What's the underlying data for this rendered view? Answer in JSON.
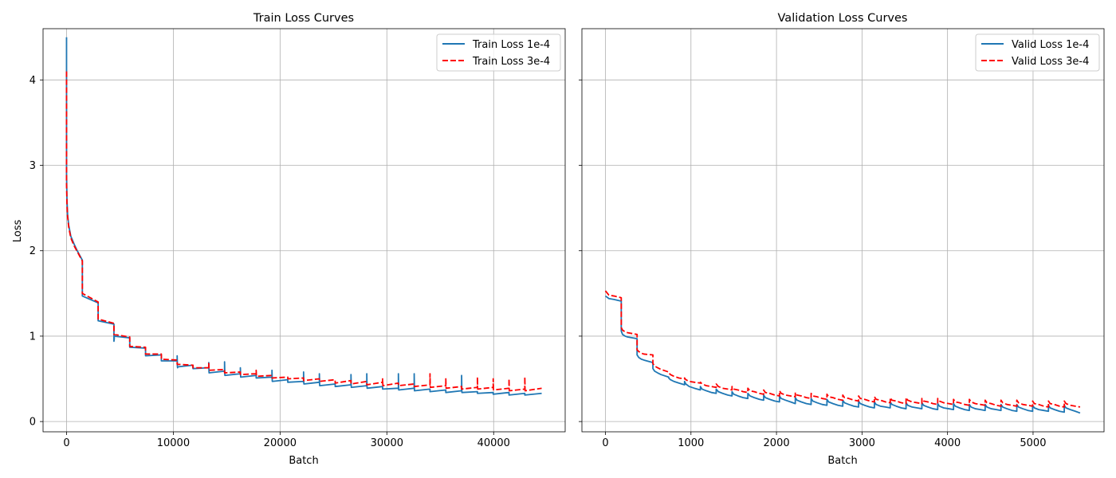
{
  "chart_data": [
    {
      "type": "line",
      "title": "Train Loss Curves",
      "xlabel": "Batch",
      "ylabel": "Loss",
      "xlim": [
        -2200,
        46700
      ],
      "ylim": [
        -0.12,
        4.6
      ],
      "xticks": [
        0,
        10000,
        20000,
        30000,
        40000
      ],
      "yticks": [
        0,
        1,
        2,
        3,
        4
      ],
      "grid": true,
      "legend_position": "upper right",
      "series": [
        {
          "name": "Train Loss 1e-4",
          "color": "#1f77b4",
          "dash": "solid",
          "x": [
            0,
            0,
            40,
            100,
            200,
            400,
            700,
            1000,
            1480,
            1480,
            2960,
            2960,
            4440,
            4440,
            4470,
            4470,
            5920,
            5920,
            7400,
            7400,
            8880,
            8880,
            10360,
            10360,
            10380,
            10400,
            10410,
            11840,
            11840,
            13320,
            13320,
            13340,
            13350,
            14800,
            14800,
            14820,
            14830,
            16280,
            16280,
            16300,
            16310,
            17760,
            17760,
            19240,
            19240,
            19260,
            19270,
            20720,
            20720,
            22200,
            22200,
            22220,
            22230,
            23680,
            23680,
            23700,
            23710,
            25160,
            25160,
            26640,
            26640,
            26660,
            26670,
            28120,
            28120,
            28140,
            28150,
            29600,
            29600,
            31080,
            31080,
            31100,
            31110,
            32560,
            32560,
            32580,
            32590,
            34040,
            34040,
            35520,
            35520,
            37000,
            37000,
            37020,
            37030,
            38480,
            38480,
            39960,
            39960,
            41440,
            41440,
            42920,
            42920,
            44500
          ],
          "y": [
            4.5,
            2.9,
            2.6,
            2.42,
            2.3,
            2.17,
            2.08,
            2.0,
            1.89,
            1.47,
            1.39,
            1.18,
            1.14,
            0.94,
            0.97,
            1.0,
            0.98,
            0.87,
            0.86,
            0.77,
            0.78,
            0.71,
            0.71,
            0.77,
            0.65,
            0.63,
            0.64,
            0.66,
            0.62,
            0.63,
            0.69,
            0.6,
            0.57,
            0.59,
            0.7,
            0.57,
            0.54,
            0.56,
            0.63,
            0.55,
            0.52,
            0.54,
            0.51,
            0.52,
            0.6,
            0.5,
            0.47,
            0.49,
            0.46,
            0.47,
            0.58,
            0.47,
            0.44,
            0.46,
            0.56,
            0.45,
            0.42,
            0.44,
            0.41,
            0.43,
            0.55,
            0.43,
            0.4,
            0.42,
            0.56,
            0.42,
            0.39,
            0.41,
            0.38,
            0.39,
            0.56,
            0.4,
            0.37,
            0.39,
            0.56,
            0.39,
            0.36,
            0.38,
            0.35,
            0.37,
            0.34,
            0.36,
            0.54,
            0.37,
            0.34,
            0.35,
            0.33,
            0.34,
            0.32,
            0.34,
            0.31,
            0.33,
            0.31,
            0.33
          ]
        },
        {
          "name": "Train Loss 3e-4",
          "color": "#ff0000",
          "dash": "dashed",
          "x": [
            0,
            0,
            40,
            100,
            200,
            400,
            700,
            1000,
            1480,
            1480,
            2960,
            2960,
            4440,
            4440,
            5920,
            5920,
            7400,
            7400,
            8880,
            8880,
            10360,
            10360,
            11840,
            11840,
            13320,
            13320,
            13340,
            13350,
            14800,
            14800,
            16280,
            16280,
            17760,
            17760,
            17780,
            17790,
            19240,
            19240,
            20720,
            20720,
            22200,
            22200,
            23680,
            23680,
            25160,
            25160,
            26640,
            26640,
            28120,
            28120,
            29600,
            29600,
            29620,
            29630,
            31080,
            31080,
            32560,
            32560,
            34040,
            34040,
            34060,
            34070,
            35520,
            35520,
            35540,
            35550,
            37000,
            37000,
            38480,
            38480,
            38500,
            38510,
            39960,
            39960,
            39980,
            39990,
            41440,
            41440,
            41460,
            41470,
            42920,
            42920,
            42940,
            42950,
            44500
          ],
          "y": [
            4.1,
            2.8,
            2.55,
            2.4,
            2.28,
            2.15,
            2.06,
            1.99,
            1.88,
            1.5,
            1.4,
            1.2,
            1.15,
            1.02,
            0.99,
            0.88,
            0.87,
            0.79,
            0.79,
            0.73,
            0.72,
            0.67,
            0.66,
            0.63,
            0.63,
            0.68,
            0.62,
            0.6,
            0.61,
            0.57,
            0.58,
            0.55,
            0.56,
            0.6,
            0.54,
            0.53,
            0.54,
            0.51,
            0.52,
            0.5,
            0.51,
            0.48,
            0.5,
            0.47,
            0.49,
            0.45,
            0.48,
            0.44,
            0.47,
            0.43,
            0.46,
            0.5,
            0.44,
            0.42,
            0.45,
            0.42,
            0.44,
            0.41,
            0.43,
            0.56,
            0.42,
            0.4,
            0.42,
            0.5,
            0.41,
            0.39,
            0.41,
            0.38,
            0.4,
            0.52,
            0.4,
            0.38,
            0.4,
            0.5,
            0.39,
            0.37,
            0.39,
            0.5,
            0.38,
            0.36,
            0.38,
            0.52,
            0.38,
            0.36,
            0.39
          ]
        }
      ]
    },
    {
      "type": "line",
      "title": "Validation Loss Curves",
      "xlabel": "Batch",
      "ylabel": "",
      "xlim": [
        -275,
        5830
      ],
      "ylim": [
        -0.12,
        4.6
      ],
      "xticks": [
        0,
        1000,
        2000,
        3000,
        4000,
        5000
      ],
      "yticks": [
        0,
        1,
        2,
        3,
        4
      ],
      "grid": true,
      "legend_position": "upper right",
      "series": [
        {
          "name": "Valid Loss 1e-4",
          "color": "#1f77b4",
          "dash": "solid",
          "x": [
            0,
            40,
            100,
            185,
            185,
            200,
            230,
            260,
            370,
            370,
            390,
            420,
            450,
            555,
            555,
            575,
            610,
            650,
            740,
            740,
            760,
            800,
            860,
            925,
            925,
            940,
            980,
            1040,
            1110,
            1110,
            1130,
            1180,
            1240,
            1295,
            1295,
            1320,
            1370,
            1430,
            1480,
            1480,
            1500,
            1550,
            1610,
            1665,
            1665,
            1690,
            1740,
            1800,
            1850,
            1850,
            1870,
            1920,
            1980,
            2035,
            2035,
            2055,
            2105,
            2165,
            2220,
            2220,
            2240,
            2290,
            2350,
            2405,
            2405,
            2425,
            2475,
            2535,
            2590,
            2590,
            2610,
            2660,
            2720,
            2775,
            2775,
            2795,
            2845,
            2905,
            2960,
            2960,
            2980,
            3030,
            3090,
            3145,
            3145,
            3165,
            3215,
            3275,
            3330,
            3330,
            3350,
            3400,
            3460,
            3515,
            3515,
            3535,
            3585,
            3645,
            3700,
            3700,
            3720,
            3770,
            3830,
            3885,
            3885,
            3905,
            3955,
            4015,
            4070,
            4070,
            4090,
            4140,
            4200,
            4255,
            4255,
            4275,
            4325,
            4385,
            4440,
            4440,
            4460,
            4510,
            4570,
            4625,
            4625,
            4645,
            4695,
            4755,
            4810,
            4810,
            4830,
            4880,
            4940,
            4995,
            4995,
            5015,
            5065,
            5125,
            5180,
            5180,
            5200,
            5250,
            5310,
            5365,
            5365,
            5385,
            5435,
            5495,
            5550
          ],
          "y": [
            1.47,
            1.44,
            1.43,
            1.41,
            1.06,
            1.02,
            1.0,
            0.99,
            0.97,
            0.78,
            0.75,
            0.73,
            0.72,
            0.69,
            0.62,
            0.59,
            0.57,
            0.55,
            0.52,
            0.51,
            0.49,
            0.47,
            0.45,
            0.43,
            0.47,
            0.44,
            0.41,
            0.39,
            0.37,
            0.41,
            0.38,
            0.36,
            0.34,
            0.33,
            0.38,
            0.35,
            0.33,
            0.31,
            0.3,
            0.35,
            0.32,
            0.3,
            0.28,
            0.27,
            0.33,
            0.3,
            0.28,
            0.26,
            0.25,
            0.31,
            0.28,
            0.26,
            0.24,
            0.23,
            0.3,
            0.27,
            0.25,
            0.23,
            0.21,
            0.28,
            0.25,
            0.23,
            0.21,
            0.2,
            0.27,
            0.24,
            0.22,
            0.2,
            0.19,
            0.26,
            0.23,
            0.21,
            0.19,
            0.18,
            0.25,
            0.22,
            0.2,
            0.18,
            0.17,
            0.24,
            0.21,
            0.19,
            0.17,
            0.16,
            0.23,
            0.2,
            0.18,
            0.17,
            0.16,
            0.23,
            0.2,
            0.18,
            0.16,
            0.15,
            0.22,
            0.19,
            0.17,
            0.16,
            0.15,
            0.22,
            0.19,
            0.17,
            0.15,
            0.14,
            0.21,
            0.18,
            0.16,
            0.15,
            0.14,
            0.21,
            0.18,
            0.16,
            0.14,
            0.13,
            0.2,
            0.17,
            0.15,
            0.14,
            0.13,
            0.2,
            0.17,
            0.15,
            0.14,
            0.13,
            0.2,
            0.17,
            0.15,
            0.13,
            0.12,
            0.2,
            0.17,
            0.15,
            0.13,
            0.12,
            0.19,
            0.16,
            0.14,
            0.13,
            0.12,
            0.19,
            0.16,
            0.14,
            0.12,
            0.11,
            0.19,
            0.16,
            0.14,
            0.12,
            0.1
          ]
        },
        {
          "name": "Valid Loss 3e-4",
          "color": "#ff0000",
          "dash": "dashed",
          "x": [
            0,
            40,
            100,
            185,
            185,
            200,
            230,
            260,
            370,
            370,
            390,
            420,
            450,
            555,
            555,
            575,
            610,
            650,
            740,
            740,
            760,
            800,
            860,
            925,
            925,
            940,
            980,
            1040,
            1110,
            1110,
            1130,
            1180,
            1240,
            1295,
            1295,
            1320,
            1370,
            1430,
            1480,
            1480,
            1500,
            1550,
            1610,
            1665,
            1665,
            1690,
            1740,
            1800,
            1850,
            1850,
            1870,
            1920,
            1980,
            2035,
            2035,
            2055,
            2105,
            2165,
            2220,
            2220,
            2240,
            2290,
            2350,
            2405,
            2405,
            2425,
            2475,
            2535,
            2590,
            2590,
            2610,
            2660,
            2720,
            2775,
            2775,
            2795,
            2845,
            2905,
            2960,
            2960,
            2980,
            3030,
            3090,
            3145,
            3145,
            3165,
            3215,
            3275,
            3330,
            3330,
            3350,
            3400,
            3460,
            3515,
            3515,
            3535,
            3585,
            3645,
            3700,
            3700,
            3720,
            3770,
            3830,
            3885,
            3885,
            3905,
            3955,
            4015,
            4070,
            4070,
            4090,
            4140,
            4200,
            4255,
            4255,
            4275,
            4325,
            4385,
            4440,
            4440,
            4460,
            4510,
            4570,
            4625,
            4625,
            4645,
            4695,
            4755,
            4810,
            4810,
            4830,
            4880,
            4940,
            4995,
            4995,
            5015,
            5065,
            5125,
            5180,
            5180,
            5200,
            5250,
            5310,
            5365,
            5365,
            5385,
            5435,
            5495,
            5550
          ],
          "y": [
            1.53,
            1.48,
            1.47,
            1.45,
            1.1,
            1.07,
            1.05,
            1.04,
            1.02,
            0.84,
            0.82,
            0.8,
            0.79,
            0.78,
            0.68,
            0.65,
            0.63,
            0.61,
            0.58,
            0.57,
            0.55,
            0.53,
            0.51,
            0.5,
            0.51,
            0.49,
            0.47,
            0.46,
            0.45,
            0.46,
            0.44,
            0.42,
            0.41,
            0.4,
            0.44,
            0.41,
            0.39,
            0.38,
            0.37,
            0.41,
            0.38,
            0.37,
            0.35,
            0.34,
            0.39,
            0.36,
            0.35,
            0.33,
            0.32,
            0.37,
            0.34,
            0.33,
            0.31,
            0.3,
            0.36,
            0.33,
            0.31,
            0.3,
            0.29,
            0.34,
            0.31,
            0.3,
            0.28,
            0.27,
            0.33,
            0.3,
            0.29,
            0.27,
            0.26,
            0.32,
            0.29,
            0.28,
            0.26,
            0.25,
            0.31,
            0.28,
            0.27,
            0.25,
            0.24,
            0.3,
            0.27,
            0.26,
            0.24,
            0.23,
            0.29,
            0.26,
            0.25,
            0.23,
            0.22,
            0.28,
            0.25,
            0.24,
            0.22,
            0.21,
            0.28,
            0.25,
            0.23,
            0.22,
            0.21,
            0.27,
            0.24,
            0.23,
            0.21,
            0.2,
            0.27,
            0.24,
            0.22,
            0.21,
            0.2,
            0.26,
            0.23,
            0.22,
            0.2,
            0.19,
            0.26,
            0.23,
            0.21,
            0.2,
            0.19,
            0.25,
            0.22,
            0.21,
            0.19,
            0.18,
            0.25,
            0.22,
            0.2,
            0.19,
            0.18,
            0.25,
            0.22,
            0.2,
            0.19,
            0.18,
            0.24,
            0.21,
            0.2,
            0.18,
            0.17,
            0.24,
            0.21,
            0.2,
            0.18,
            0.17,
            0.24,
            0.21,
            0.19,
            0.18,
            0.17
          ]
        }
      ]
    }
  ]
}
